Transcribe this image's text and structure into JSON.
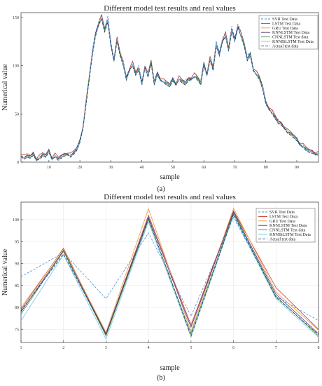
{
  "chart_data": [
    {
      "type": "line",
      "panel_label": "(a)",
      "title": "Different model test results and real values",
      "xlabel": "sample",
      "ylabel": "Numerical value",
      "xlim": [
        1,
        97
      ],
      "ylim": [
        0,
        155
      ],
      "xticks": [
        10,
        20,
        30,
        40,
        50,
        60,
        70,
        80,
        90
      ],
      "yticks": [
        0,
        50,
        100,
        150
      ],
      "grid": false,
      "legend_position": "top-right",
      "actual_series_index": 6,
      "x": [
        1,
        2,
        3,
        4,
        5,
        6,
        7,
        8,
        9,
        10,
        11,
        12,
        13,
        14,
        15,
        16,
        17,
        18,
        19,
        20,
        21,
        22,
        23,
        24,
        25,
        26,
        27,
        28,
        29,
        30,
        31,
        32,
        33,
        34,
        35,
        36,
        37,
        38,
        39,
        40,
        41,
        42,
        43,
        44,
        45,
        46,
        47,
        48,
        49,
        50,
        51,
        52,
        53,
        54,
        55,
        56,
        57,
        58,
        59,
        60,
        61,
        62,
        63,
        64,
        65,
        66,
        67,
        68,
        69,
        70,
        71,
        72,
        73,
        74,
        75,
        76,
        77,
        78,
        79,
        80,
        81,
        82,
        83,
        84,
        85,
        86,
        87,
        88,
        89,
        90,
        91,
        92,
        93,
        94,
        95,
        96,
        97
      ],
      "series": [
        {
          "name": "SVR Test Data",
          "color": "#4a8fd6",
          "dash": "3,2",
          "offset": 3,
          "amp": 1.02
        },
        {
          "name": "LSTM Test Data",
          "color": "#c0392b",
          "dash": "",
          "offset": 5,
          "amp": 1.0
        },
        {
          "name": "GRU Test Data",
          "color": "#e89a3c",
          "dash": "",
          "offset": 4,
          "amp": 1.0
        },
        {
          "name": "KNNLSTM Test Data",
          "color": "#5b2c83",
          "dash": "",
          "offset": 3,
          "amp": 1.0
        },
        {
          "name": "CNNLSTM Test data",
          "color": "#3e8e3a",
          "dash": "",
          "offset": 2,
          "amp": 1.0
        },
        {
          "name": "KNNBiLSTM Test Data",
          "color": "#6fc2e0",
          "dash": "",
          "offset": 1,
          "amp": 1.0
        },
        {
          "name": "Actual test data",
          "color": "#1f3f7a",
          "dash": "4,2",
          "offset": 0,
          "amp": 1.0
        }
      ],
      "values": [
        6,
        3,
        5,
        4,
        7,
        2,
        3,
        6,
        5,
        10,
        3,
        5,
        2,
        4,
        6,
        8,
        5,
        8,
        12,
        20,
        35,
        60,
        85,
        110,
        130,
        142,
        148,
        135,
        145,
        120,
        105,
        125,
        110,
        100,
        85,
        95,
        100,
        90,
        95,
        80,
        98,
        88,
        102,
        80,
        90,
        85,
        82,
        80,
        78,
        84,
        80,
        85,
        82,
        80,
        84,
        86,
        88,
        85,
        80,
        100,
        90,
        105,
        95,
        120,
        110,
        125,
        130,
        115,
        135,
        125,
        140,
        130,
        120,
        105,
        110,
        95,
        90,
        85,
        75,
        60,
        55,
        50,
        45,
        40,
        38,
        35,
        30,
        28,
        25,
        22,
        18,
        15,
        12,
        10,
        9,
        8,
        7
      ]
    },
    {
      "type": "line",
      "panel_label": "(b)",
      "title": "Different model test results and real values",
      "xlabel": "sample",
      "ylabel": "Numerical value",
      "xlim": [
        1,
        8
      ],
      "ylim": [
        72,
        104
      ],
      "xticks": [
        1,
        2,
        3,
        4,
        5,
        6,
        7,
        8
      ],
      "yticks": [
        75,
        80,
        85,
        90,
        95,
        100
      ],
      "grid": true,
      "legend_position": "top-right",
      "x": [
        1,
        2,
        3,
        4,
        5,
        6,
        7,
        8
      ],
      "series": [
        {
          "name": "SVR Test Data",
          "color": "#4a8fd6",
          "dash": "3,2",
          "values": [
            87,
            92.5,
            82,
            97,
            78,
            100.5,
            82.5,
            77
          ]
        },
        {
          "name": "LSTM Test Data",
          "color": "#c0392b",
          "dash": "",
          "values": [
            79.5,
            93.5,
            74,
            101,
            76,
            102,
            84.5,
            75
          ]
        },
        {
          "name": "GRU Test Data",
          "color": "#e89a3c",
          "dash": "",
          "values": [
            80,
            93.3,
            74.3,
            102.5,
            74.5,
            102.6,
            83.5,
            74.8
          ]
        },
        {
          "name": "KNNLSTM Test Data",
          "color": "#5b2c83",
          "dash": "",
          "values": [
            79,
            93,
            73.8,
            100.5,
            75.5,
            101.8,
            83,
            74
          ]
        },
        {
          "name": "CNNLSTM Test data",
          "color": "#3e8e3a",
          "dash": "",
          "values": [
            78.5,
            92.8,
            73.5,
            100,
            74,
            101.5,
            82.5,
            73.5
          ]
        },
        {
          "name": "KNNBiLSTM Test Data",
          "color": "#6fc2e0",
          "dash": "",
          "values": [
            77,
            92,
            72.8,
            99.5,
            73.2,
            101,
            82,
            73.2
          ]
        },
        {
          "name": "Actual test data",
          "color": "#1f3f7a",
          "dash": "4,2",
          "values": [
            79.2,
            92.2,
            74,
            100.2,
            73.5,
            101.2,
            82.3,
            73.8
          ]
        }
      ]
    }
  ]
}
